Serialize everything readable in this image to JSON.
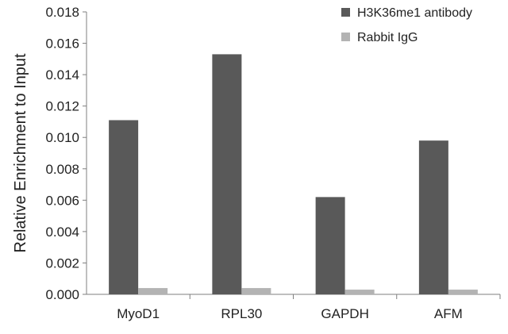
{
  "chart_data": {
    "type": "bar",
    "title": "",
    "xlabel": "",
    "ylabel": "Relative Enrichment to Input",
    "ylim": [
      0,
      0.018
    ],
    "yticks": [
      "0.000",
      "0.002",
      "0.004",
      "0.006",
      "0.008",
      "0.010",
      "0.012",
      "0.014",
      "0.016",
      "0.018"
    ],
    "categories": [
      "MyoD1",
      "RPL30",
      "GAPDH",
      "AFM"
    ],
    "grid": false,
    "legend_position": "top-right",
    "series": [
      {
        "name": "H3K36me1 antibody",
        "color": "#595959",
        "values": [
          0.0111,
          0.0153,
          0.0062,
          0.0098
        ]
      },
      {
        "name": "Rabbit IgG",
        "color": "#b3b3b3",
        "values": [
          0.0004,
          0.0004,
          0.0003,
          0.0003
        ]
      }
    ]
  }
}
